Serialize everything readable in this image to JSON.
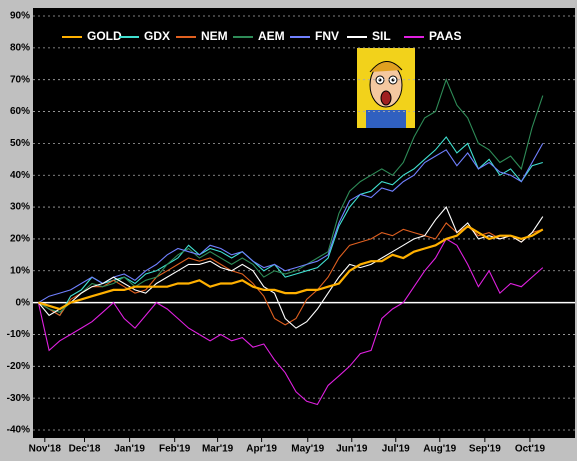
{
  "chart_data": {
    "type": "line",
    "ylim": [
      -40,
      90
    ],
    "yticks": [
      {
        "value": -40,
        "label": "-40%"
      },
      {
        "value": -30,
        "label": "-30%"
      },
      {
        "value": -20,
        "label": "-20%"
      },
      {
        "value": -10,
        "label": "-10%"
      },
      {
        "value": 0,
        "label": "0%"
      },
      {
        "value": 10,
        "label": "10%"
      },
      {
        "value": 20,
        "label": "20%"
      },
      {
        "value": 30,
        "label": "30%"
      },
      {
        "value": 40,
        "label": "40%"
      },
      {
        "value": 50,
        "label": "50%"
      },
      {
        "value": 60,
        "label": "60%"
      },
      {
        "value": 70,
        "label": "70%"
      },
      {
        "value": 80,
        "label": "80%"
      },
      {
        "value": 90,
        "label": "90%"
      }
    ],
    "xticks": [
      {
        "value": 0.6,
        "label": "Nov'18"
      },
      {
        "value": 4.3,
        "label": "Dec'18"
      },
      {
        "value": 8.5,
        "label": "Jan'19"
      },
      {
        "value": 12.7,
        "label": "Feb'19"
      },
      {
        "value": 16.7,
        "label": "Mar'19"
      },
      {
        "value": 20.8,
        "label": "Apr'19"
      },
      {
        "value": 25.1,
        "label": "May'19"
      },
      {
        "value": 29.2,
        "label": "Jun'19"
      },
      {
        "value": 33.3,
        "label": "Jul'19"
      },
      {
        "value": 37.4,
        "label": "Aug'19"
      },
      {
        "value": 41.6,
        "label": "Sep'19"
      },
      {
        "value": 45.8,
        "label": "Oct'19"
      }
    ],
    "xlim": [
      -0.5,
      50
    ],
    "grid": true,
    "series": [
      {
        "name": "GOLD",
        "color": "#ffb000",
        "values": [
          0,
          -1,
          -2,
          0,
          1,
          2,
          3,
          4,
          4,
          5,
          5,
          5,
          5,
          6,
          6,
          7,
          5,
          6,
          6,
          7,
          5,
          4,
          4,
          3,
          3,
          4,
          4,
          5,
          6,
          10,
          12,
          13,
          13,
          15,
          14,
          16,
          17,
          18,
          20,
          21,
          24,
          22,
          20,
          21,
          21,
          20,
          21,
          23
        ]
      },
      {
        "name": "GDX",
        "color": "#40e0d0",
        "values": [
          0,
          -2,
          -4,
          2,
          4,
          8,
          6,
          7,
          8,
          6,
          9,
          10,
          12,
          14,
          18,
          15,
          17,
          16,
          14,
          16,
          13,
          10,
          12,
          8,
          9,
          10,
          11,
          14,
          24,
          30,
          34,
          35,
          38,
          37,
          40,
          42,
          45,
          48,
          52,
          47,
          50,
          42,
          45,
          40,
          42,
          38,
          43,
          44
        ]
      },
      {
        "name": "NEM",
        "color": "#e06020",
        "values": [
          0,
          -2,
          -4,
          1,
          3,
          5,
          5,
          7,
          5,
          3,
          4,
          8,
          10,
          12,
          14,
          13,
          14,
          12,
          10,
          9,
          6,
          2,
          -5,
          -7,
          -5,
          1,
          4,
          8,
          14,
          18,
          19,
          20,
          22,
          21,
          23,
          22,
          21,
          20,
          25,
          22,
          24,
          21,
          22,
          20,
          21,
          19,
          22,
          23
        ]
      },
      {
        "name": "AEM",
        "color": "#2e8b57",
        "values": [
          0,
          -2,
          -3,
          0,
          3,
          6,
          5,
          6,
          8,
          5,
          7,
          8,
          12,
          15,
          17,
          14,
          16,
          14,
          12,
          14,
          12,
          8,
          10,
          9,
          10,
          12,
          14,
          16,
          28,
          35,
          38,
          40,
          42,
          40,
          44,
          52,
          58,
          60,
          70,
          62,
          58,
          50,
          48,
          44,
          46,
          42,
          55,
          65
        ]
      },
      {
        "name": "FNV",
        "color": "#7080ff",
        "values": [
          0,
          2,
          3,
          4,
          6,
          8,
          6,
          8,
          9,
          7,
          10,
          12,
          15,
          17,
          16,
          15,
          18,
          17,
          15,
          16,
          13,
          11,
          12,
          10,
          11,
          12,
          13,
          15,
          25,
          32,
          34,
          33,
          36,
          35,
          38,
          40,
          44,
          46,
          48,
          43,
          47,
          42,
          44,
          41,
          40,
          38,
          44,
          50
        ]
      },
      {
        "name": "SIL",
        "color": "#ffffff",
        "values": [
          0,
          -4,
          -2,
          0,
          3,
          5,
          6,
          8,
          6,
          4,
          3,
          6,
          8,
          10,
          12,
          12,
          13,
          11,
          10,
          12,
          10,
          5,
          3,
          -5,
          -8,
          -6,
          -2,
          3,
          8,
          12,
          11,
          12,
          14,
          16,
          18,
          20,
          21,
          26,
          30,
          22,
          25,
          20,
          21,
          20,
          21,
          19,
          22,
          27
        ]
      },
      {
        "name": "PAAS",
        "color": "#e020e0",
        "values": [
          0,
          -15,
          -12,
          -10,
          -8,
          -6,
          -3,
          0,
          -5,
          -8,
          -4,
          0,
          -2,
          -5,
          -8,
          -10,
          -12,
          -10,
          -12,
          -11,
          -14,
          -13,
          -18,
          -22,
          -28,
          -31,
          -32,
          -26,
          -23,
          -20,
          -16,
          -15,
          -5,
          -2,
          0,
          5,
          10,
          14,
          20,
          18,
          12,
          5,
          10,
          3,
          6,
          5,
          8,
          11
        ]
      }
    ]
  }
}
